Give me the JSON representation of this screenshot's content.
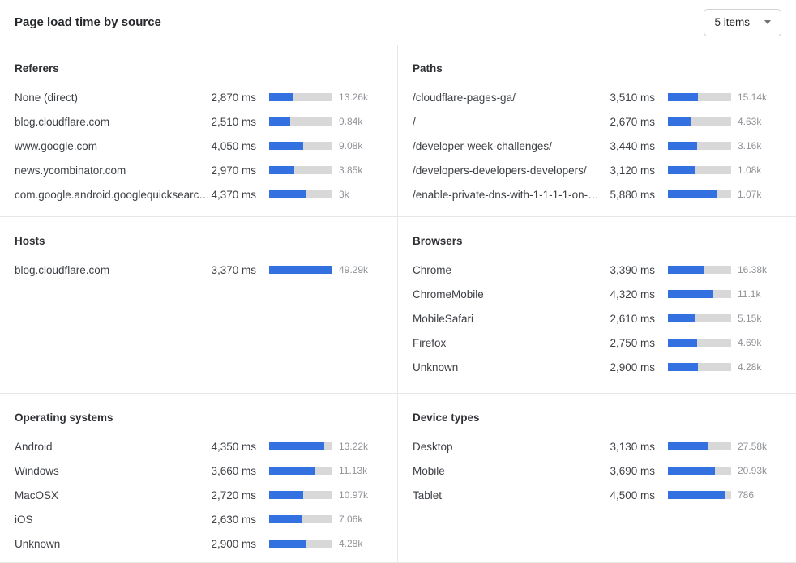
{
  "header": {
    "title": "Page load time by source"
  },
  "controls": {
    "items_dropdown": {
      "value": "5 items"
    }
  },
  "colors": {
    "bar_fill": "#3370e0",
    "bar_track": "#d8d8d8",
    "divider": "#e7e7e7"
  },
  "chart_data": [
    {
      "type": "bar",
      "orientation": "horizontal",
      "title": "Referers",
      "value_unit": "ms",
      "rows": [
        {
          "label": "None (direct)",
          "ms": 2870,
          "ms_label": "2,870 ms",
          "count_label": "13.26k",
          "bar_pct": 38
        },
        {
          "label": "blog.cloudflare.com",
          "ms": 2510,
          "ms_label": "2,510 ms",
          "count_label": "9.84k",
          "bar_pct": 33
        },
        {
          "label": "www.google.com",
          "ms": 4050,
          "ms_label": "4,050 ms",
          "count_label": "9.08k",
          "bar_pct": 54
        },
        {
          "label": "news.ycombinator.com",
          "ms": 2970,
          "ms_label": "2,970 ms",
          "count_label": "3.85k",
          "bar_pct": 40
        },
        {
          "label": "com.google.android.googlequicksearc…",
          "ms": 4370,
          "ms_label": "4,370 ms",
          "count_label": "3k",
          "bar_pct": 58
        }
      ]
    },
    {
      "type": "bar",
      "orientation": "horizontal",
      "title": "Paths",
      "value_unit": "ms",
      "rows": [
        {
          "label": "/cloudflare-pages-ga/",
          "ms": 3510,
          "ms_label": "3,510 ms",
          "count_label": "15.14k",
          "bar_pct": 47
        },
        {
          "label": "/",
          "ms": 2670,
          "ms_label": "2,670 ms",
          "count_label": "4.63k",
          "bar_pct": 36
        },
        {
          "label": "/developer-week-challenges/",
          "ms": 3440,
          "ms_label": "3,440 ms",
          "count_label": "3.16k",
          "bar_pct": 46
        },
        {
          "label": "/developers-developers-developers/",
          "ms": 3120,
          "ms_label": "3,120 ms",
          "count_label": "1.08k",
          "bar_pct": 42
        },
        {
          "label": "/enable-private-dns-with-1-1-1-1-on-…",
          "ms": 5880,
          "ms_label": "5,880 ms",
          "count_label": "1.07k",
          "bar_pct": 78
        }
      ]
    },
    {
      "type": "bar",
      "orientation": "horizontal",
      "title": "Hosts",
      "value_unit": "ms",
      "rows": [
        {
          "label": "blog.cloudflare.com",
          "ms": 3370,
          "ms_label": "3,370 ms",
          "count_label": "49.29k",
          "bar_pct": 100
        }
      ]
    },
    {
      "type": "bar",
      "orientation": "horizontal",
      "title": "Browsers",
      "value_unit": "ms",
      "rows": [
        {
          "label": "Chrome",
          "ms": 3390,
          "ms_label": "3,390 ms",
          "count_label": "16.38k",
          "bar_pct": 57
        },
        {
          "label": "ChromeMobile",
          "ms": 4320,
          "ms_label": "4,320 ms",
          "count_label": "11.1k",
          "bar_pct": 72
        },
        {
          "label": "MobileSafari",
          "ms": 2610,
          "ms_label": "2,610 ms",
          "count_label": "5.15k",
          "bar_pct": 44
        },
        {
          "label": "Firefox",
          "ms": 2750,
          "ms_label": "2,750 ms",
          "count_label": "4.69k",
          "bar_pct": 46
        },
        {
          "label": "Unknown",
          "ms": 2900,
          "ms_label": "2,900 ms",
          "count_label": "4.28k",
          "bar_pct": 48
        }
      ]
    },
    {
      "type": "bar",
      "orientation": "horizontal",
      "title": "Operating systems",
      "value_unit": "ms",
      "rows": [
        {
          "label": "Android",
          "ms": 4350,
          "ms_label": "4,350 ms",
          "count_label": "13.22k",
          "bar_pct": 87
        },
        {
          "label": "Windows",
          "ms": 3660,
          "ms_label": "3,660 ms",
          "count_label": "11.13k",
          "bar_pct": 73
        },
        {
          "label": "MacOSX",
          "ms": 2720,
          "ms_label": "2,720 ms",
          "count_label": "10.97k",
          "bar_pct": 54
        },
        {
          "label": "iOS",
          "ms": 2630,
          "ms_label": "2,630 ms",
          "count_label": "7.06k",
          "bar_pct": 53
        },
        {
          "label": "Unknown",
          "ms": 2900,
          "ms_label": "2,900 ms",
          "count_label": "4.28k",
          "bar_pct": 58
        }
      ]
    },
    {
      "type": "bar",
      "orientation": "horizontal",
      "title": "Device types",
      "value_unit": "ms",
      "rows": [
        {
          "label": "Desktop",
          "ms": 3130,
          "ms_label": "3,130 ms",
          "count_label": "27.58k",
          "bar_pct": 63
        },
        {
          "label": "Mobile",
          "ms": 3690,
          "ms_label": "3,690 ms",
          "count_label": "20.93k",
          "bar_pct": 74
        },
        {
          "label": "Tablet",
          "ms": 4500,
          "ms_label": "4,500 ms",
          "count_label": "786",
          "bar_pct": 90
        }
      ]
    }
  ]
}
